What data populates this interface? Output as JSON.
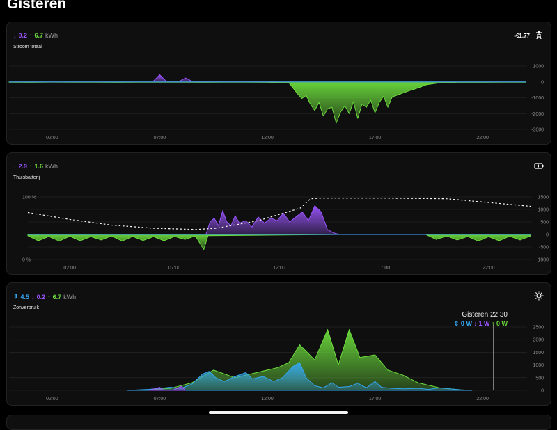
{
  "page": {
    "title": "Gisteren"
  },
  "colors": {
    "violet": "#9b55ff",
    "green": "#6cdc3c",
    "blue": "#35a7f0",
    "grid": "#2a2a2a",
    "muted": "#8a8a8a"
  },
  "cards": {
    "grid": {
      "name": "Stroom totaal",
      "stats": {
        "down_arrow": "↓",
        "down": "0.2",
        "up_arrow": "↑",
        "up": "6.7",
        "unit": "kWh"
      },
      "cost": "-€1.77",
      "icon": "power-pylon-icon"
    },
    "battery": {
      "name": "Thuisbatterij",
      "stats": {
        "down_arrow": "↓",
        "down": "2.9",
        "up_arrow": "↑",
        "up": "1.6",
        "unit": "kWh"
      },
      "icon": "battery-icon"
    },
    "solar": {
      "name": "Zonverbruik",
      "stats": {
        "both_arrow": "⇕",
        "both": "4.5",
        "down_arrow": "↓",
        "down": "0.2",
        "up_arrow": "↑",
        "up": "6.7",
        "unit": "kWh"
      },
      "icon": "sun-icon",
      "tooltip": {
        "title": "Gisteren 22:30",
        "v1": "⇕ 0 W",
        "v2": "↓ 1 W",
        "v3": "↑ 0 W"
      }
    }
  },
  "chart_data": [
    {
      "type": "area",
      "title": "Stroom totaal",
      "x_ticks": [
        "02:00",
        "07:00",
        "12:00",
        "17:00",
        "22:00"
      ],
      "y_ticks": [
        "1000",
        "0",
        "-1000",
        "-2000",
        "-3000"
      ],
      "ylim": [
        -3000,
        1000
      ],
      "x_range_hours": [
        0,
        24
      ],
      "series": [
        {
          "name": "import",
          "color": "violet",
          "points": [
            [
              6.7,
              40
            ],
            [
              7.0,
              450
            ],
            [
              7.3,
              40
            ],
            [
              7.9,
              30
            ],
            [
              8.2,
              250
            ],
            [
              8.5,
              40
            ],
            [
              9.5,
              20
            ],
            [
              11.0,
              10
            ],
            [
              12.5,
              5
            ]
          ]
        },
        {
          "name": "export",
          "color": "green",
          "points": [
            [
              0,
              -20
            ],
            [
              1,
              -30
            ],
            [
              2,
              -15
            ],
            [
              3,
              -25
            ],
            [
              4,
              -20
            ],
            [
              5,
              -30
            ],
            [
              6,
              -25
            ],
            [
              8,
              -20
            ],
            [
              9,
              -30
            ],
            [
              10,
              -25
            ],
            [
              11,
              -20
            ],
            [
              12,
              -30
            ],
            [
              13.0,
              -60
            ],
            [
              13.2,
              -400
            ],
            [
              13.4,
              -750
            ],
            [
              13.6,
              -1050
            ],
            [
              13.8,
              -850
            ],
            [
              14.0,
              -1400
            ],
            [
              14.2,
              -1800
            ],
            [
              14.4,
              -1300
            ],
            [
              14.6,
              -2150
            ],
            [
              14.8,
              -1700
            ],
            [
              15.0,
              -1600
            ],
            [
              15.2,
              -2600
            ],
            [
              15.4,
              -1900
            ],
            [
              15.6,
              -1500
            ],
            [
              15.8,
              -2000
            ],
            [
              16.0,
              -1250
            ],
            [
              16.2,
              -2300
            ],
            [
              16.4,
              -1400
            ],
            [
              16.6,
              -1600
            ],
            [
              16.8,
              -1150
            ],
            [
              17.0,
              -1950
            ],
            [
              17.2,
              -1300
            ],
            [
              17.4,
              -900
            ],
            [
              17.6,
              -1600
            ],
            [
              17.8,
              -950
            ],
            [
              18.0,
              -850
            ],
            [
              18.3,
              -700
            ],
            [
              18.6,
              -550
            ],
            [
              19.0,
              -380
            ],
            [
              19.4,
              -180
            ],
            [
              20.0,
              -60
            ],
            [
              21.0,
              -20
            ],
            [
              22.0,
              -30
            ],
            [
              23.0,
              -20
            ],
            [
              24,
              -25
            ]
          ]
        }
      ]
    },
    {
      "type": "area",
      "title": "Thuisbatterij",
      "x_ticks": [
        "02:00",
        "07:00",
        "12:00",
        "17:00",
        "22:00"
      ],
      "y_ticks_right": [
        "1500",
        "1000",
        "500",
        "0",
        "-500",
        "-1000"
      ],
      "y_ticks_left": [
        "100 %",
        "0 %"
      ],
      "ylim": [
        -1000,
        1500
      ],
      "x_range_hours": [
        0,
        24
      ],
      "series": [
        {
          "name": "charge",
          "color": "violet",
          "points": [
            [
              8.5,
              0
            ],
            [
              8.7,
              500
            ],
            [
              8.9,
              650
            ],
            [
              9.1,
              350
            ],
            [
              9.3,
              950
            ],
            [
              9.5,
              500
            ],
            [
              9.7,
              350
            ],
            [
              9.9,
              750
            ],
            [
              10.1,
              450
            ],
            [
              10.4,
              550
            ],
            [
              10.7,
              300
            ],
            [
              11.0,
              700
            ],
            [
              11.3,
              450
            ],
            [
              11.6,
              650
            ],
            [
              11.9,
              550
            ],
            [
              12.2,
              850
            ],
            [
              12.5,
              500
            ],
            [
              12.8,
              700
            ],
            [
              13.1,
              900
            ],
            [
              13.4,
              550
            ],
            [
              13.7,
              1150
            ],
            [
              14.0,
              900
            ],
            [
              14.3,
              200
            ],
            [
              14.6,
              60
            ],
            [
              14.9,
              0
            ]
          ]
        },
        {
          "name": "discharge",
          "color": "green",
          "points": [
            [
              0,
              -50
            ],
            [
              0.5,
              -250
            ],
            [
              1,
              -80
            ],
            [
              1.5,
              -260
            ],
            [
              2,
              -70
            ],
            [
              2.5,
              -250
            ],
            [
              3,
              -90
            ],
            [
              3.5,
              -220
            ],
            [
              4,
              -60
            ],
            [
              4.5,
              -260
            ],
            [
              5,
              -80
            ],
            [
              5.5,
              -240
            ],
            [
              6,
              -90
            ],
            [
              6.5,
              -250
            ],
            [
              7,
              -80
            ],
            [
              7.5,
              -200
            ],
            [
              8,
              -60
            ],
            [
              8.4,
              -600
            ],
            [
              8.6,
              -50
            ],
            [
              15,
              0
            ],
            [
              19,
              0
            ],
            [
              19.5,
              -200
            ],
            [
              20,
              -60
            ],
            [
              20.5,
              -220
            ],
            [
              21,
              -80
            ],
            [
              21.5,
              -260
            ],
            [
              22,
              -90
            ],
            [
              22.5,
              -250
            ],
            [
              23,
              -70
            ],
            [
              23.5,
              -220
            ],
            [
              24,
              -60
            ]
          ]
        },
        {
          "name": "state_of_charge_pct",
          "color": "#ffffff",
          "style": "dashed",
          "points": [
            [
              0,
              75
            ],
            [
              2,
              64
            ],
            [
              4,
              55
            ],
            [
              6,
              50
            ],
            [
              8,
              48
            ],
            [
              9,
              50
            ],
            [
              11,
              62
            ],
            [
              13,
              82
            ],
            [
              13.5,
              97
            ],
            [
              14,
              98
            ],
            [
              17,
              98
            ],
            [
              20,
              97
            ],
            [
              24,
              85
            ]
          ]
        }
      ]
    },
    {
      "type": "area",
      "title": "Zonverbruik",
      "x_ticks": [
        "02:00",
        "07:00",
        "12:00",
        "17:00",
        "22:00"
      ],
      "y_ticks": [
        "2500",
        "2000",
        "1500",
        "1000",
        "500",
        "0"
      ],
      "ylim": [
        0,
        2500
      ],
      "x_range_hours": [
        0,
        24
      ],
      "series": [
        {
          "name": "production",
          "color": "green",
          "points": [
            [
              5.5,
              0
            ],
            [
              6.5,
              20
            ],
            [
              7.5,
              80
            ],
            [
              8.5,
              300
            ],
            [
              9.5,
              800
            ],
            [
              10.5,
              500
            ],
            [
              11.5,
              700
            ],
            [
              12.5,
              900
            ],
            [
              13.0,
              1100
            ],
            [
              13.5,
              1800
            ],
            [
              14.2,
              1200
            ],
            [
              14.8,
              2400
            ],
            [
              15.3,
              1000
            ],
            [
              15.8,
              2400
            ],
            [
              16.3,
              1300
            ],
            [
              17.0,
              1400
            ],
            [
              17.6,
              800
            ],
            [
              18.3,
              600
            ],
            [
              19.0,
              300
            ],
            [
              20.0,
              100
            ],
            [
              21.0,
              20
            ],
            [
              21.5,
              0
            ]
          ]
        },
        {
          "name": "self_use",
          "color": "blue",
          "points": [
            [
              5.5,
              0
            ],
            [
              6.5,
              40
            ],
            [
              7.5,
              120
            ],
            [
              8.0,
              80
            ],
            [
              8.5,
              250
            ],
            [
              9.0,
              650
            ],
            [
              9.3,
              750
            ],
            [
              9.6,
              500
            ],
            [
              10.0,
              350
            ],
            [
              10.5,
              550
            ],
            [
              11.0,
              700
            ],
            [
              11.3,
              450
            ],
            [
              11.8,
              550
            ],
            [
              12.3,
              350
            ],
            [
              12.7,
              500
            ],
            [
              13.2,
              950
            ],
            [
              13.5,
              1100
            ],
            [
              13.8,
              500
            ],
            [
              14.2,
              180
            ],
            [
              14.6,
              100
            ],
            [
              15.0,
              300
            ],
            [
              15.3,
              120
            ],
            [
              15.8,
              150
            ],
            [
              16.2,
              280
            ],
            [
              16.6,
              100
            ],
            [
              17.0,
              350
            ],
            [
              17.3,
              120
            ],
            [
              17.8,
              80
            ],
            [
              18.3,
              60
            ],
            [
              19.0,
              80
            ],
            [
              19.5,
              40
            ],
            [
              20.0,
              100
            ],
            [
              21.0,
              20
            ],
            [
              21.5,
              0
            ]
          ]
        },
        {
          "name": "import",
          "color": "violet",
          "points": [
            [
              6.5,
              0
            ],
            [
              7.0,
              120
            ],
            [
              7.2,
              0
            ],
            [
              7.6,
              0
            ],
            [
              8.0,
              160
            ],
            [
              8.2,
              0
            ]
          ]
        }
      ],
      "cursor_hour": 22.5
    }
  ]
}
